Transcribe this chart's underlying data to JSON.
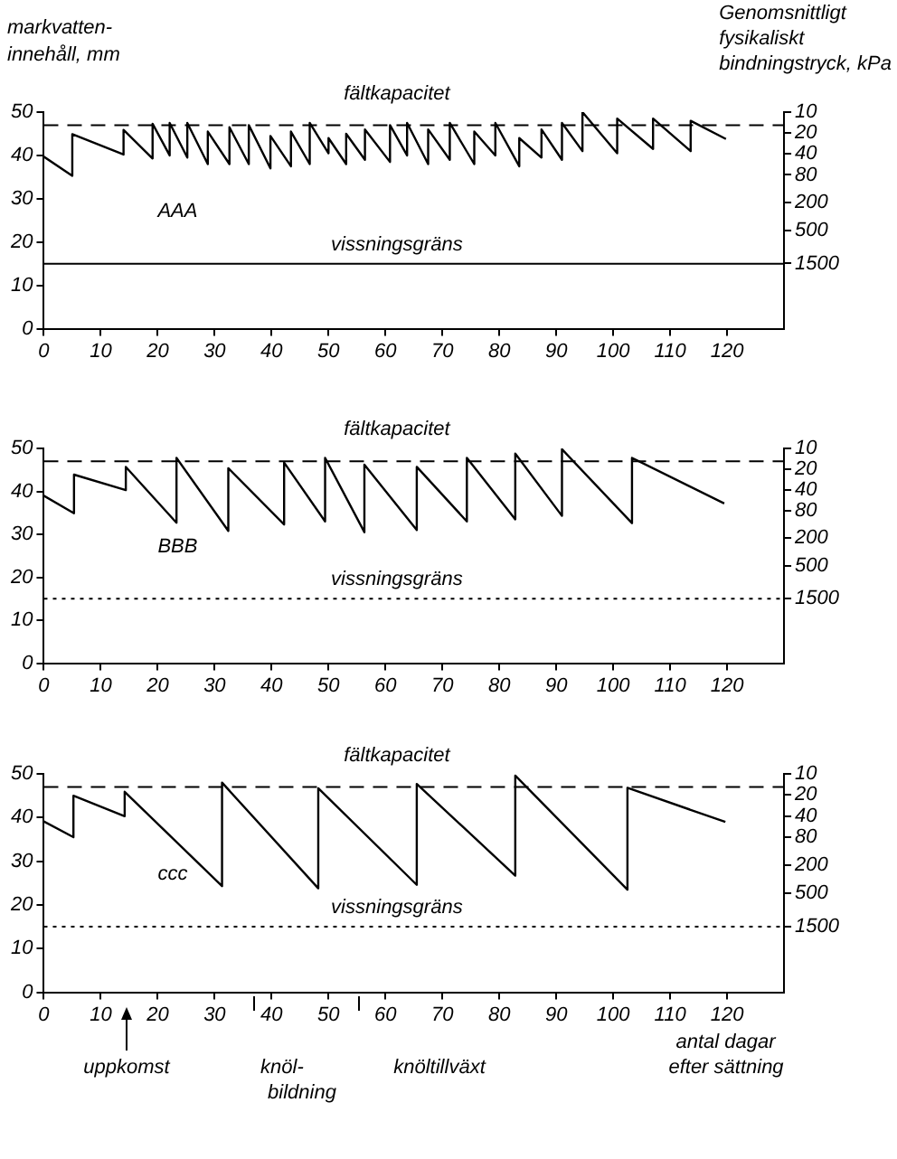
{
  "chart_data": [
    {
      "type": "line",
      "title": "AAA",
      "ylabel": "markvatten-innehåll, mm",
      "y2label": "Genomsnittligt fysikaliskt bindningstryck, kPa",
      "x": [
        0,
        5,
        5,
        14,
        14,
        19.1,
        19.1,
        22.1,
        22.1,
        25.2,
        25.2,
        28.8,
        28.8,
        32.6,
        32.6,
        36,
        36,
        39.8,
        39.8,
        43.4,
        43.4,
        46.7,
        46.7,
        50,
        50,
        53.1,
        53.1,
        56.4,
        56.4,
        60.8,
        60.8,
        63.8,
        63.8,
        67.5,
        67.5,
        71.3,
        71.3,
        75.6,
        75.6,
        79.3,
        79.3,
        83.5,
        83.5,
        87.4,
        87.4,
        91,
        91,
        94.6,
        94.6,
        100.7,
        100.7,
        107,
        107,
        113.6,
        113.6,
        119.8
      ],
      "series": [
        {
          "color": "#000000",
          "values": [
            39.7,
            35.3,
            44.9,
            40.2,
            45.9,
            39.3,
            47.3,
            40,
            47.5,
            39.5,
            47.5,
            38,
            45.5,
            38,
            46.5,
            38,
            47,
            37,
            44.5,
            37.5,
            45.5,
            38,
            47.5,
            40.5,
            44,
            38,
            45,
            39,
            46,
            38.5,
            47,
            40,
            47.5,
            38,
            46,
            39,
            47.5,
            38,
            45.5,
            40,
            47.5,
            37.5,
            44,
            39.5,
            46,
            39,
            47.5,
            41,
            50,
            40.5,
            48.5,
            41.5,
            48.5,
            41,
            48,
            43.8
          ]
        }
      ],
      "xlim": [
        0,
        130
      ],
      "xticks": [
        0,
        10,
        20,
        30,
        40,
        50,
        60,
        70,
        80,
        90,
        100,
        110,
        120
      ],
      "ylim": [
        0,
        50
      ],
      "yticks": [
        0,
        10,
        20,
        30,
        40,
        50
      ],
      "y2lim": [
        13000,
        10
      ],
      "y2ticks": [
        10,
        20,
        40,
        80,
        200,
        500,
        1500
      ],
      "log": "y2",
      "ref_lines": [
        {
          "axis": "y",
          "value": 47,
          "label": "fältkapacitet",
          "line_style": "dashed"
        },
        {
          "axis": "y",
          "value": 15,
          "label": "vissningsgräns",
          "line_style": "solid"
        }
      ],
      "grid": false,
      "legend": false,
      "marker": "none",
      "line_style": "solid"
    },
    {
      "type": "line",
      "title": "BBB",
      "x": [
        0,
        5.3,
        5.3,
        14.4,
        14.4,
        23.3,
        23.3,
        32.4,
        32.4,
        42.2,
        42.2,
        49.4,
        49.4,
        56.3,
        56.3,
        65.5,
        65.5,
        74.3,
        74.3,
        82.8,
        82.8,
        91,
        91,
        103.3,
        103.3,
        119.5
      ],
      "series": [
        {
          "color": "#000000",
          "values": [
            39,
            34.9,
            43.9,
            40.3,
            45.7,
            32.7,
            47.8,
            30.8,
            45.4,
            32.3,
            46.7,
            33,
            47.8,
            30.5,
            46.2,
            31,
            45.7,
            33,
            47.8,
            33.5,
            48.8,
            34.3,
            49.8,
            32.6,
            47.8,
            37.2
          ]
        }
      ],
      "xlim": [
        0,
        130
      ],
      "xticks": [
        0,
        10,
        20,
        30,
        40,
        50,
        60,
        70,
        80,
        90,
        100,
        110,
        120
      ],
      "ylim": [
        0,
        50
      ],
      "yticks": [
        0,
        10,
        20,
        30,
        40,
        50
      ],
      "y2lim": [
        13000,
        10
      ],
      "y2ticks": [
        10,
        20,
        40,
        80,
        200,
        500,
        1500
      ],
      "log": "y2",
      "ref_lines": [
        {
          "axis": "y",
          "value": 47,
          "label": "fältkapacitet",
          "line_style": "dashed"
        },
        {
          "axis": "y",
          "value": 15,
          "label": "vissningsgräns",
          "line_style": "dotted"
        }
      ],
      "grid": false,
      "legend": false,
      "marker": "none",
      "line_style": "solid"
    },
    {
      "type": "line",
      "title": "ccc",
      "xlabel": "antal dagar efter sättning",
      "x": [
        0,
        5.2,
        5.2,
        14.2,
        14.2,
        31.3,
        31.3,
        48.2,
        48.2,
        65.5,
        65.5,
        82.8,
        82.8,
        102.5,
        102.5,
        119.7
      ],
      "series": [
        {
          "color": "#000000",
          "values": [
            39.1,
            35.5,
            45,
            40.3,
            45.9,
            24.3,
            48,
            23.8,
            46.7,
            24.6,
            47.7,
            26.7,
            49.6,
            23.5,
            46.8,
            39
          ]
        }
      ],
      "xlim": [
        0,
        130
      ],
      "xticks": [
        0,
        10,
        20,
        30,
        40,
        50,
        60,
        70,
        80,
        90,
        100,
        110,
        120
      ],
      "ylim": [
        0,
        50
      ],
      "yticks": [
        0,
        10,
        20,
        30,
        40,
        50
      ],
      "y2lim": [
        13000,
        10
      ],
      "y2ticks": [
        10,
        20,
        40,
        80,
        200,
        500,
        1500
      ],
      "log": "y2",
      "ref_lines": [
        {
          "axis": "y",
          "value": 47,
          "label": "fältkapacitet",
          "line_style": "dashed"
        },
        {
          "axis": "y",
          "value": 15,
          "label": "vissningsgräns",
          "line_style": "dotted"
        }
      ],
      "annotations": [
        "uppkomst",
        "knöl-bildning",
        "knöltillväxt"
      ],
      "grid": false,
      "legend": false,
      "marker": "none",
      "line_style": "solid"
    }
  ]
}
